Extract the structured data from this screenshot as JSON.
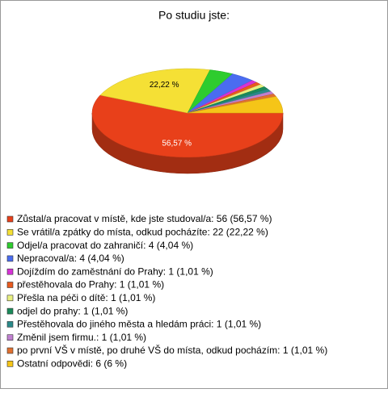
{
  "chart_data": {
    "type": "pie",
    "title": "Po studiu jste:",
    "categories": [
      "Zůstal/a pracovat v místě, kde jste studoval/a: 56 (56,57 %)",
      "Se vrátil/a zpátky do místa, odkud pocházíte: 22 (22,22 %)",
      "Odjel/a pracovat do zahraničí: 4 (4,04 %)",
      "Nepracoval/a: 4 (4,04 %)",
      "Dojíždím do zaměstnání do Prahy: 1 (1,01 %)",
      "přestěhovala do Prahy: 1 (1,01 %)",
      "Přešla na péči o dítě: 1 (1,01 %)",
      "odjel do prahy: 1 (1,01 %)",
      "Přestěhovala do jiného města a hledám práci: 1 (1,01 %)",
      "Změnil jsem firmu.: 1 (1,01 %)",
      "po první VŠ v místě, po druhé VŠ do místa, odkud pocházím: 1 (1,01 %)",
      "Ostatní odpovědi: 6 (6 %)"
    ],
    "values": [
      56.57,
      22.22,
      4.04,
      4.04,
      1.01,
      1.01,
      1.01,
      1.01,
      1.01,
      1.01,
      1.01,
      6.06
    ],
    "value_labels": [
      "56,57 %",
      "22,22 %",
      null,
      null,
      null,
      null,
      null,
      null,
      null,
      null,
      null,
      null
    ],
    "colors": [
      "#e8401a",
      "#f5e035",
      "#2ecc2e",
      "#4a6cf0",
      "#d633d6",
      "#e85a1e",
      "#e8f080",
      "#1a8a5a",
      "#2a8a8a",
      "#c080d0",
      "#e07030",
      "#f5c518"
    ]
  }
}
